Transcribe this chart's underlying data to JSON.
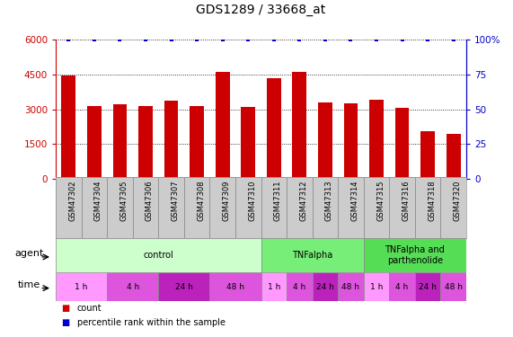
{
  "title": "GDS1289 / 33668_at",
  "samples": [
    "GSM47302",
    "GSM47304",
    "GSM47305",
    "GSM47306",
    "GSM47307",
    "GSM47308",
    "GSM47309",
    "GSM47310",
    "GSM47311",
    "GSM47312",
    "GSM47313",
    "GSM47314",
    "GSM47315",
    "GSM47316",
    "GSM47318",
    "GSM47320"
  ],
  "counts": [
    4450,
    3150,
    3200,
    3150,
    3350,
    3150,
    4600,
    3100,
    4350,
    4600,
    3300,
    3250,
    3400,
    3050,
    2050,
    1950
  ],
  "percentiles": [
    100,
    100,
    100,
    100,
    100,
    100,
    100,
    100,
    100,
    100,
    100,
    100,
    100,
    100,
    100,
    100
  ],
  "bar_color": "#cc0000",
  "dot_color": "#0000cc",
  "left_ylim": [
    0,
    6000
  ],
  "left_yticks": [
    0,
    1500,
    3000,
    4500,
    6000
  ],
  "left_yticklabels": [
    "0",
    "1500",
    "3000",
    "4500",
    "6000"
  ],
  "right_ylim": [
    0,
    100
  ],
  "right_yticks": [
    0,
    25,
    50,
    75,
    100
  ],
  "right_yticklabels": [
    "0",
    "25",
    "50",
    "75",
    "100%"
  ],
  "agent_groups": [
    {
      "label": "control",
      "start": 0,
      "end": 8,
      "color": "#ccffcc"
    },
    {
      "label": "TNFalpha",
      "start": 8,
      "end": 12,
      "color": "#77ee77"
    },
    {
      "label": "TNFalpha and\nparthenolide",
      "start": 12,
      "end": 16,
      "color": "#55dd55"
    }
  ],
  "time_groups": [
    {
      "label": "1 h",
      "start": 0,
      "end": 2,
      "color": "#ff99ff"
    },
    {
      "label": "4 h",
      "start": 2,
      "end": 4,
      "color": "#dd55dd"
    },
    {
      "label": "24 h",
      "start": 4,
      "end": 6,
      "color": "#bb22bb"
    },
    {
      "label": "48 h",
      "start": 6,
      "end": 8,
      "color": "#dd55dd"
    },
    {
      "label": "1 h",
      "start": 8,
      "end": 9,
      "color": "#ff99ff"
    },
    {
      "label": "4 h",
      "start": 9,
      "end": 10,
      "color": "#dd55dd"
    },
    {
      "label": "24 h",
      "start": 10,
      "end": 11,
      "color": "#bb22bb"
    },
    {
      "label": "48 h",
      "start": 11,
      "end": 12,
      "color": "#dd55dd"
    },
    {
      "label": "1 h",
      "start": 12,
      "end": 13,
      "color": "#ff99ff"
    },
    {
      "label": "4 h",
      "start": 13,
      "end": 14,
      "color": "#dd55dd"
    },
    {
      "label": "24 h",
      "start": 14,
      "end": 15,
      "color": "#bb22bb"
    },
    {
      "label": "48 h",
      "start": 15,
      "end": 16,
      "color": "#dd55dd"
    }
  ],
  "sample_bg": "#cccccc",
  "legend_count_color": "#cc0000",
  "legend_dot_color": "#0000cc",
  "grid_color": "#000000",
  "background_color": "#ffffff",
  "title_fontsize": 10,
  "tick_fontsize": 7.5,
  "sample_fontsize": 6,
  "row_label_fontsize": 8,
  "group_fontsize": 7,
  "time_fontsize": 6.5,
  "bar_width": 0.55
}
